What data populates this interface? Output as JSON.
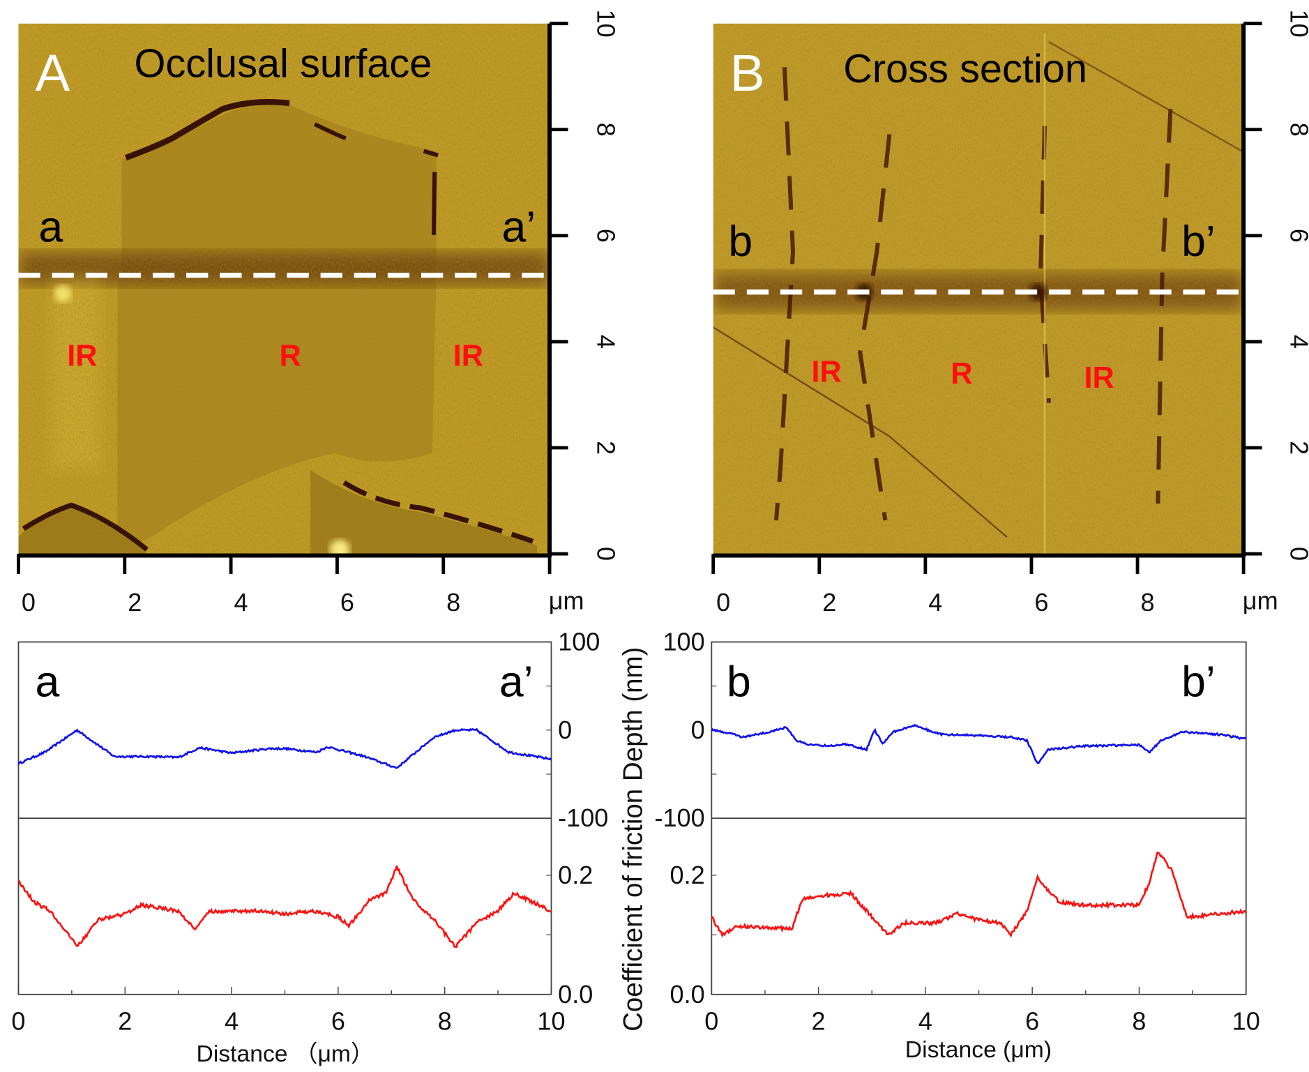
{
  "panels": {
    "A": {
      "letter": "A",
      "title": "Occlusal surface",
      "start": "a",
      "end": "a’",
      "regions": [
        "IR",
        "R",
        "IR"
      ]
    },
    "B": {
      "letter": "B",
      "title": "Cross section",
      "start": "b",
      "end": "b’",
      "regions": [
        "IR",
        "R",
        "IR"
      ]
    }
  },
  "image_axes": {
    "ticks": [
      "0",
      "2",
      "4",
      "6",
      "8",
      "10"
    ],
    "x_ticks": [
      "0",
      "2",
      "4",
      "6",
      "8"
    ],
    "unit": "μm",
    "range": [
      0,
      10
    ]
  },
  "colors": {
    "depth": "#1010ee",
    "friction": "#ff1010",
    "afm_base": "#b89322",
    "afm_dark": "#4a1a05"
  },
  "chart_data": [
    {
      "type": "line",
      "panel": "A",
      "start_label": "a",
      "end_label": "a’",
      "xlabel": "Distance （μm）",
      "xlim": [
        0,
        10
      ],
      "x_ticks": [
        "0",
        "2",
        "4",
        "6",
        "8",
        "10"
      ],
      "series": [
        {
          "name": "Depth (nm)",
          "ylim": [
            -100,
            100
          ],
          "y_ticks": [
            "100",
            "0",
            "-100"
          ],
          "x": [
            0,
            0.5,
            1.1,
            1.8,
            2.5,
            3.0,
            3.4,
            4.0,
            4.7,
            5.0,
            5.6,
            5.8,
            6.5,
            7.1,
            7.8,
            8.2,
            8.6,
            9.2,
            10
          ],
          "y": [
            -38,
            -25,
            0,
            -30,
            -30,
            -31,
            -20,
            -26,
            -21,
            -21,
            -25,
            -19,
            -30,
            -43,
            -8,
            0,
            0,
            -25,
            -33
          ]
        },
        {
          "name": "Coefficient of friction",
          "ylim": [
            0,
            0.3
          ],
          "y_ticks": [
            "0.2",
            "0.0"
          ],
          "x": [
            0,
            0.3,
            0.6,
            1.1,
            1.5,
            2.0,
            2.3,
            3.0,
            3.3,
            3.6,
            4.5,
            5.0,
            5.5,
            6.0,
            6.2,
            6.6,
            6.9,
            7.1,
            7.4,
            7.8,
            8.2,
            8.6,
            9.0,
            9.3,
            10
          ],
          "y": [
            0.19,
            0.155,
            0.14,
            0.08,
            0.125,
            0.135,
            0.15,
            0.14,
            0.11,
            0.14,
            0.14,
            0.135,
            0.14,
            0.13,
            0.115,
            0.16,
            0.17,
            0.215,
            0.16,
            0.125,
            0.08,
            0.12,
            0.14,
            0.17,
            0.14
          ]
        }
      ]
    },
    {
      "type": "line",
      "panel": "B",
      "start_label": "b",
      "end_label": "b’",
      "xlabel": "Distance (μm)",
      "ylabel": "Coefficient of friction Depth (nm)",
      "xlim": [
        0,
        10
      ],
      "x_ticks": [
        "0",
        "2",
        "4",
        "6",
        "8",
        "10"
      ],
      "series": [
        {
          "name": "Depth (nm)",
          "ylim": [
            -100,
            100
          ],
          "y_ticks": [
            "100",
            "0",
            "-100"
          ],
          "x": [
            0,
            0.3,
            0.6,
            1.0,
            1.4,
            1.6,
            1.8,
            2.2,
            2.5,
            2.9,
            3.05,
            3.2,
            3.4,
            3.8,
            4.3,
            5.0,
            5.6,
            5.9,
            6.1,
            6.3,
            7.0,
            8.0,
            8.2,
            8.4,
            8.8,
            9.5,
            10
          ],
          "y": [
            0,
            -3,
            -8,
            -3,
            3,
            -12,
            -16,
            -18,
            -16,
            -22,
            0,
            -15,
            -2,
            5,
            -5,
            -6,
            -8,
            -12,
            -38,
            -22,
            -18,
            -17,
            -25,
            -12,
            -2,
            -5,
            -10
          ]
        },
        {
          "name": "Coefficient of friction",
          "ylim": [
            0,
            0.3
          ],
          "y_ticks": [
            "0.2",
            "0.0"
          ],
          "x": [
            0,
            0.2,
            0.5,
            1.5,
            1.7,
            2.0,
            2.6,
            3.0,
            3.3,
            3.6,
            4.2,
            4.6,
            5.0,
            5.4,
            5.6,
            5.9,
            6.1,
            6.5,
            7.0,
            8.0,
            8.2,
            8.35,
            8.6,
            8.9,
            10
          ],
          "y": [
            0.13,
            0.1,
            0.115,
            0.11,
            0.16,
            0.165,
            0.17,
            0.13,
            0.1,
            0.12,
            0.12,
            0.135,
            0.125,
            0.12,
            0.1,
            0.14,
            0.195,
            0.155,
            0.15,
            0.15,
            0.19,
            0.24,
            0.21,
            0.13,
            0.14
          ]
        }
      ]
    }
  ]
}
